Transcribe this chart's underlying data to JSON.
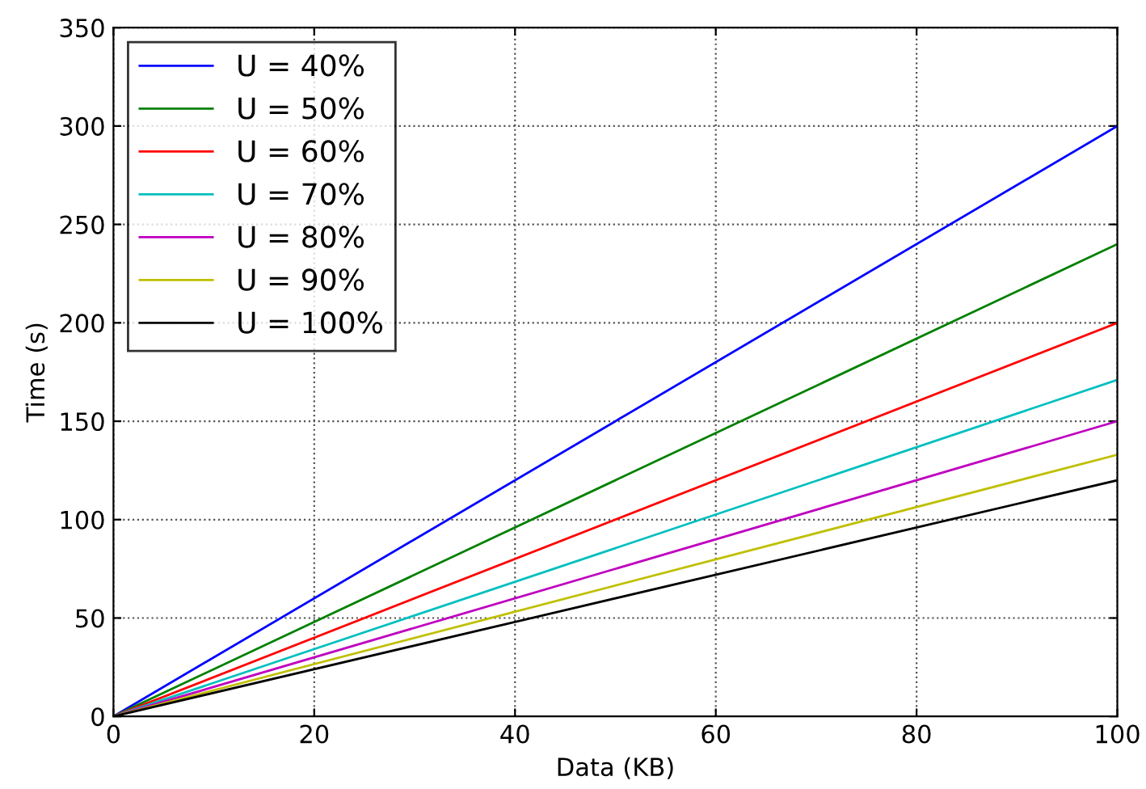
{
  "chart_data": {
    "type": "line",
    "xlabel": "Data (KB)",
    "ylabel": "Time (s)",
    "xlim": [
      0,
      100
    ],
    "ylim": [
      0,
      350
    ],
    "xticks": [
      0,
      20,
      40,
      60,
      80,
      100
    ],
    "yticks": [
      0,
      50,
      100,
      150,
      200,
      250,
      300,
      350
    ],
    "grid": true,
    "legend": "top left",
    "line_style": "solid",
    "x": [
      0,
      100
    ],
    "series": [
      {
        "name": "U = 40%",
        "color": "#0000ff",
        "values": [
          0,
          300
        ]
      },
      {
        "name": "U = 50%",
        "color": "#008000",
        "values": [
          0,
          240
        ]
      },
      {
        "name": "U = 60%",
        "color": "#ff0000",
        "values": [
          0,
          200
        ]
      },
      {
        "name": "U = 70%",
        "color": "#00bfbf",
        "values": [
          0,
          171
        ]
      },
      {
        "name": "U = 80%",
        "color": "#bf00bf",
        "values": [
          0,
          150
        ]
      },
      {
        "name": "U = 90%",
        "color": "#bfbf00",
        "values": [
          0,
          133
        ]
      },
      {
        "name": "U = 100%",
        "color": "#000000",
        "values": [
          0,
          120
        ]
      }
    ]
  }
}
